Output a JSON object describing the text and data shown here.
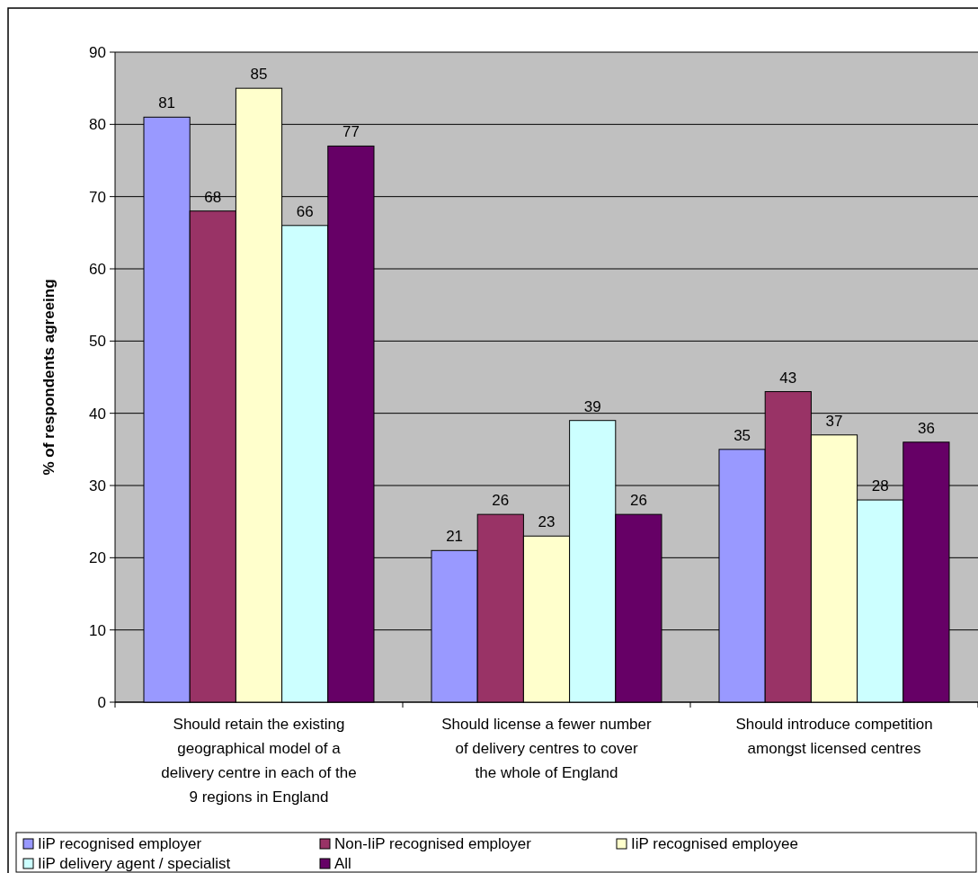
{
  "chart_data": {
    "type": "bar",
    "ylabel": "% of respondents agreeing",
    "categories": [
      "Should retain the existing geographical model of a delivery centre in each of the 9 regions in England",
      "Should license a fewer number of delivery centres to cover the whole of England",
      "Should introduce competition amongst licensed centres"
    ],
    "series": [
      {
        "name": "IiP recognised employer",
        "color": "#9999ff",
        "values": [
          81,
          21,
          35
        ]
      },
      {
        "name": "Non-IiP recognised employer",
        "color": "#993366",
        "values": [
          68,
          26,
          43
        ]
      },
      {
        "name": "IiP recognised employee",
        "color": "#ffffcc",
        "values": [
          85,
          23,
          37
        ]
      },
      {
        "name": "IiP delivery agent / specialist",
        "color": "#ccffff",
        "values": [
          66,
          39,
          28
        ]
      },
      {
        "name": "All",
        "color": "#660066",
        "values": [
          77,
          26,
          36
        ]
      }
    ],
    "ylim": [
      0,
      90
    ],
    "yticks": [
      0,
      10,
      20,
      30,
      40,
      50,
      60,
      70,
      80,
      90
    ],
    "grid": "y",
    "legend": "bottom",
    "data_labels": true
  }
}
